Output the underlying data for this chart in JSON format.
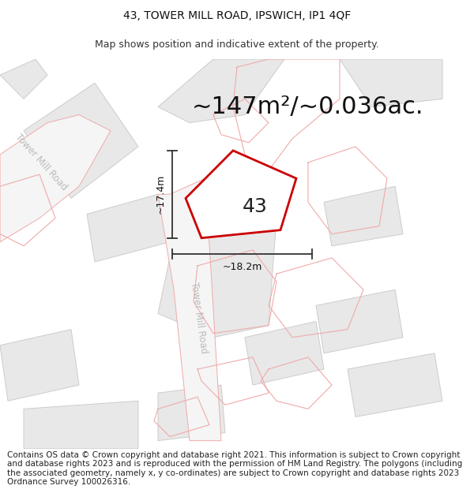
{
  "title": "43, TOWER MILL ROAD, IPSWICH, IP1 4QF",
  "subtitle": "Map shows position and indicative extent of the property.",
  "area_text": "~147m²/~0.036ac.",
  "property_number": "43",
  "dim_vertical": "~17.4m",
  "dim_horizontal": "~18.2m",
  "footer": "Contains OS data © Crown copyright and database right 2021. This information is subject to Crown copyright and database rights 2023 and is reproduced with the permission of HM Land Registry. The polygons (including the associated geometry, namely x, y co-ordinates) are subject to Crown copyright and database rights 2023 Ordnance Survey 100026316.",
  "bg_color": "#ffffff",
  "building_color": "#e8e8e8",
  "building_edge": "#cccccc",
  "property_fill": "#ffffff",
  "property_edge": "#cc0000",
  "road_label_color": "#bbbbbb",
  "pink_line": "#f0aaaa",
  "dim_line_color": "#333333",
  "title_fontsize": 10,
  "subtitle_fontsize": 9,
  "area_fontsize": 22,
  "number_fontsize": 18,
  "footer_fontsize": 7.5
}
